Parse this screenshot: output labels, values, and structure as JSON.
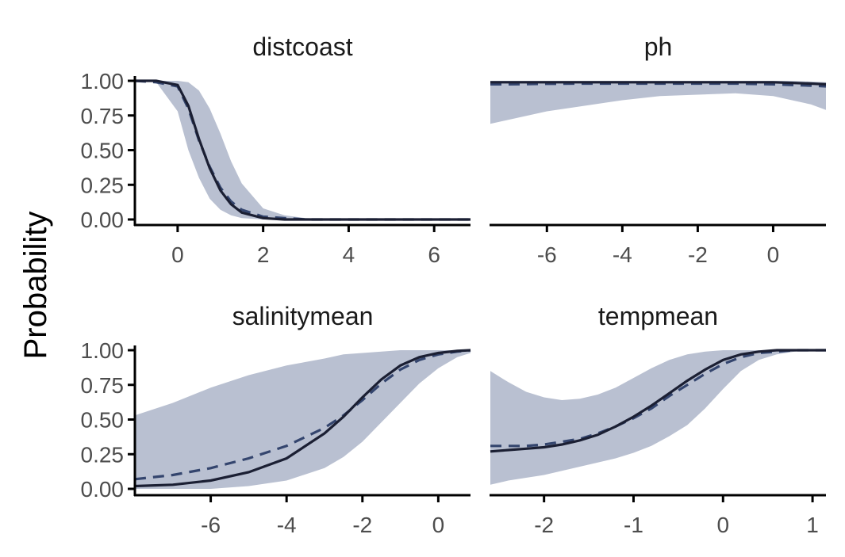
{
  "colors": {
    "ribbon": "#b9c0d1",
    "mean_line": "#1b1f33",
    "dashed_line": "#34456e"
  },
  "chart_data": {
    "type": "line",
    "ylabel": "Probability",
    "panels": [
      {
        "title": "distcoast",
        "xlim": [
          -1.0,
          6.85
        ],
        "ylim": [
          0,
          1
        ],
        "x_ticks": [
          0,
          2,
          4,
          6
        ],
        "y_ticks": [
          0.0,
          0.25,
          0.5,
          0.75,
          1.0
        ],
        "x": [
          -1.0,
          -0.5,
          0.0,
          0.25,
          0.5,
          0.75,
          1.0,
          1.25,
          1.5,
          2.0,
          2.5,
          3.0,
          4.0,
          5.0,
          6.0,
          6.85
        ],
        "mean": [
          1.0,
          1.0,
          0.97,
          0.82,
          0.58,
          0.37,
          0.21,
          0.11,
          0.05,
          0.01,
          0.0,
          0.0,
          0.0,
          0.0,
          0.0,
          0.0
        ],
        "dashed": [
          1.0,
          0.99,
          0.96,
          0.8,
          0.57,
          0.38,
          0.23,
          0.13,
          0.07,
          0.02,
          0.01,
          0.0,
          0.0,
          0.0,
          0.0,
          0.0
        ],
        "lower": [
          1.0,
          0.99,
          0.78,
          0.5,
          0.3,
          0.15,
          0.07,
          0.03,
          0.01,
          0.0,
          0.0,
          0.0,
          0.0,
          0.0,
          0.0,
          0.0
        ],
        "upper": [
          1.0,
          1.0,
          1.0,
          0.99,
          0.93,
          0.8,
          0.62,
          0.42,
          0.26,
          0.08,
          0.03,
          0.01,
          0.0,
          0.0,
          0.0,
          0.0
        ]
      },
      {
        "title": "ph",
        "xlim": [
          -7.5,
          1.4
        ],
        "ylim": [
          0,
          1
        ],
        "x_ticks": [
          -6,
          -4,
          -2,
          0
        ],
        "y_ticks": [],
        "x": [
          -7.5,
          -7.0,
          -6.0,
          -5.0,
          -4.0,
          -3.0,
          -2.0,
          -1.0,
          0.0,
          0.5,
          1.0,
          1.4
        ],
        "mean": [
          0.99,
          0.99,
          0.99,
          0.99,
          0.99,
          0.99,
          0.99,
          0.99,
          0.99,
          0.985,
          0.98,
          0.975
        ],
        "dashed": [
          0.975,
          0.975,
          0.978,
          0.98,
          0.98,
          0.98,
          0.98,
          0.98,
          0.975,
          0.97,
          0.965,
          0.96
        ],
        "lower": [
          0.69,
          0.72,
          0.78,
          0.82,
          0.86,
          0.89,
          0.9,
          0.91,
          0.89,
          0.86,
          0.83,
          0.79
        ],
        "upper": [
          1.0,
          1.0,
          1.0,
          1.0,
          1.0,
          1.0,
          1.0,
          1.0,
          1.0,
          1.0,
          0.995,
          0.99
        ]
      },
      {
        "title": "salinitymean",
        "xlim": [
          -8.0,
          0.85
        ],
        "ylim": [
          0,
          1
        ],
        "x_ticks": [
          -6,
          -4,
          -2,
          0
        ],
        "y_ticks": [
          0.0,
          0.25,
          0.5,
          0.75,
          1.0
        ],
        "x": [
          -8.0,
          -7.0,
          -6.0,
          -5.0,
          -4.0,
          -3.0,
          -2.5,
          -2.0,
          -1.5,
          -1.0,
          -0.5,
          0.0,
          0.5,
          0.85
        ],
        "mean": [
          0.02,
          0.03,
          0.06,
          0.12,
          0.22,
          0.4,
          0.52,
          0.66,
          0.79,
          0.89,
          0.95,
          0.98,
          0.995,
          1.0
        ],
        "dashed": [
          0.07,
          0.1,
          0.15,
          0.22,
          0.31,
          0.44,
          0.53,
          0.64,
          0.76,
          0.86,
          0.93,
          0.97,
          0.99,
          1.0
        ],
        "lower": [
          0.0,
          0.0,
          0.0,
          0.02,
          0.06,
          0.15,
          0.23,
          0.34,
          0.48,
          0.62,
          0.76,
          0.87,
          0.95,
          0.98
        ],
        "upper": [
          0.53,
          0.62,
          0.73,
          0.82,
          0.89,
          0.94,
          0.97,
          0.98,
          0.99,
          1.0,
          1.0,
          1.0,
          1.0,
          1.0
        ]
      },
      {
        "title": "tempmean",
        "xlim": [
          -2.6,
          1.15
        ],
        "ylim": [
          0,
          1
        ],
        "x_ticks": [
          -2,
          -1,
          0,
          1
        ],
        "y_ticks": [],
        "x": [
          -2.6,
          -2.4,
          -2.2,
          -2.0,
          -1.8,
          -1.6,
          -1.4,
          -1.2,
          -1.0,
          -0.8,
          -0.6,
          -0.4,
          -0.2,
          0.0,
          0.2,
          0.4,
          0.6,
          0.8,
          1.0,
          1.15
        ],
        "mean": [
          0.27,
          0.28,
          0.29,
          0.3,
          0.32,
          0.35,
          0.39,
          0.45,
          0.52,
          0.6,
          0.69,
          0.78,
          0.86,
          0.93,
          0.97,
          0.99,
          1.0,
          1.0,
          1.0,
          1.0
        ],
        "dashed": [
          0.31,
          0.31,
          0.31,
          0.32,
          0.34,
          0.36,
          0.4,
          0.45,
          0.51,
          0.58,
          0.67,
          0.75,
          0.83,
          0.9,
          0.95,
          0.98,
          0.99,
          1.0,
          1.0,
          1.0
        ],
        "lower": [
          0.03,
          0.06,
          0.08,
          0.1,
          0.13,
          0.16,
          0.19,
          0.22,
          0.26,
          0.31,
          0.38,
          0.46,
          0.58,
          0.72,
          0.85,
          0.93,
          0.97,
          0.99,
          1.0,
          1.0
        ],
        "upper": [
          0.85,
          0.77,
          0.7,
          0.66,
          0.64,
          0.65,
          0.68,
          0.73,
          0.8,
          0.87,
          0.93,
          0.97,
          0.99,
          1.0,
          1.0,
          1.0,
          1.0,
          1.0,
          1.0,
          1.0
        ]
      }
    ]
  }
}
